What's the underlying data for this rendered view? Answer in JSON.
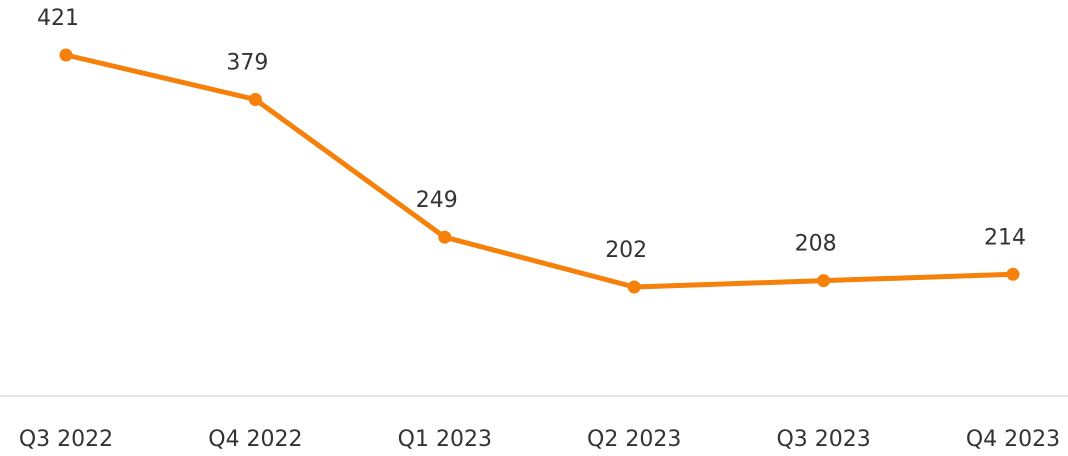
{
  "chart_data": {
    "type": "line",
    "categories": [
      "Q3 2022",
      "Q4 2022",
      "Q1 2023",
      "Q2 2023",
      "Q3 2023",
      "Q4 2023"
    ],
    "series": [
      {
        "color": "#f5800a",
        "values": [
          421,
          379,
          249,
          202,
          208,
          214
        ]
      }
    ]
  }
}
